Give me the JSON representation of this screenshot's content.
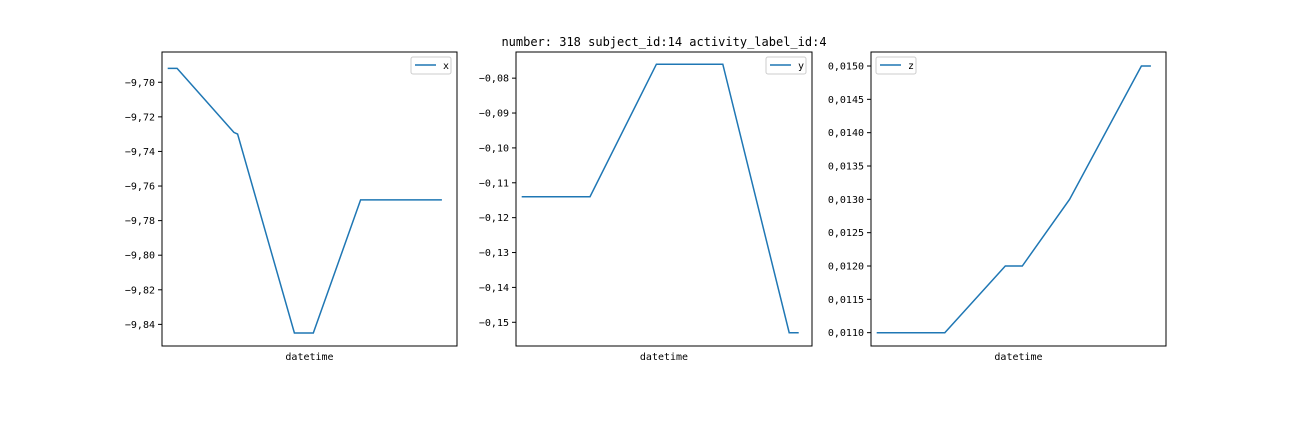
{
  "figure": {
    "title": "number: 318 subject_id:14 activity_label_id:4"
  },
  "colors": {
    "line": "#1f77b4",
    "frame": "#000000",
    "legend_border": "#cccccc"
  },
  "chart_data": [
    {
      "type": "line",
      "title": "",
      "xlabel": "datetime",
      "ylabel": "",
      "legend_position": "top-right",
      "grid": false,
      "ylim": [
        -9.8525,
        -9.6825
      ],
      "yticks": [
        -9.7,
        -9.72,
        -9.74,
        -9.76,
        -9.78,
        -9.8,
        -9.82,
        -9.84
      ],
      "ytick_labels": [
        "−9,70",
        "−9,72",
        "−9,74",
        "−9,76",
        "−9,78",
        "−9,80",
        "−9,82",
        "−9,84"
      ],
      "xlim": [
        -0.3,
        15.3
      ],
      "series": [
        {
          "name": "x",
          "x": [
            0,
            0.5,
            3.5,
            3.7,
            6.7,
            7.7,
            10.2,
            14.5
          ],
          "y": [
            -9.692,
            -9.692,
            -9.729,
            -9.73,
            -9.845,
            -9.845,
            -9.768,
            -9.768
          ]
        }
      ]
    },
    {
      "type": "line",
      "title": "",
      "xlabel": "datetime",
      "ylabel": "",
      "legend_position": "top-right",
      "grid": false,
      "ylim": [
        -0.1568,
        -0.0725
      ],
      "yticks": [
        -0.08,
        -0.09,
        -0.1,
        -0.11,
        -0.12,
        -0.13,
        -0.14,
        -0.15
      ],
      "ytick_labels": [
        "−0,08",
        "−0,09",
        "−0,10",
        "−0,11",
        "−0,12",
        "−0,13",
        "−0,14",
        "−0,15"
      ],
      "xlim": [
        -0.3,
        15.3
      ],
      "series": [
        {
          "name": "y",
          "x": [
            0,
            3.6,
            7.1,
            10.6,
            14.1,
            14.6
          ],
          "y": [
            -0.114,
            -0.114,
            -0.076,
            -0.076,
            -0.153,
            -0.153
          ]
        }
      ]
    },
    {
      "type": "line",
      "title": "",
      "xlabel": "datetime",
      "ylabel": "",
      "legend_position": "top-left",
      "grid": false,
      "ylim": [
        0.0108,
        0.01521
      ],
      "yticks": [
        0.011,
        0.0115,
        0.012,
        0.0125,
        0.013,
        0.0135,
        0.014,
        0.0145,
        0.015
      ],
      "ytick_labels": [
        "0,0110",
        "0,0115",
        "0,0120",
        "0,0125",
        "0,0130",
        "0,0135",
        "0,0140",
        "0,0145",
        "0,0150"
      ],
      "xlim": [
        -0.3,
        15.3
      ],
      "series": [
        {
          "name": "z",
          "x": [
            0,
            3.6,
            6.8,
            7.7,
            10.2,
            14.0,
            14.5
          ],
          "y": [
            0.011,
            0.011,
            0.012,
            0.012,
            0.013,
            0.015,
            0.015
          ]
        }
      ]
    }
  ]
}
